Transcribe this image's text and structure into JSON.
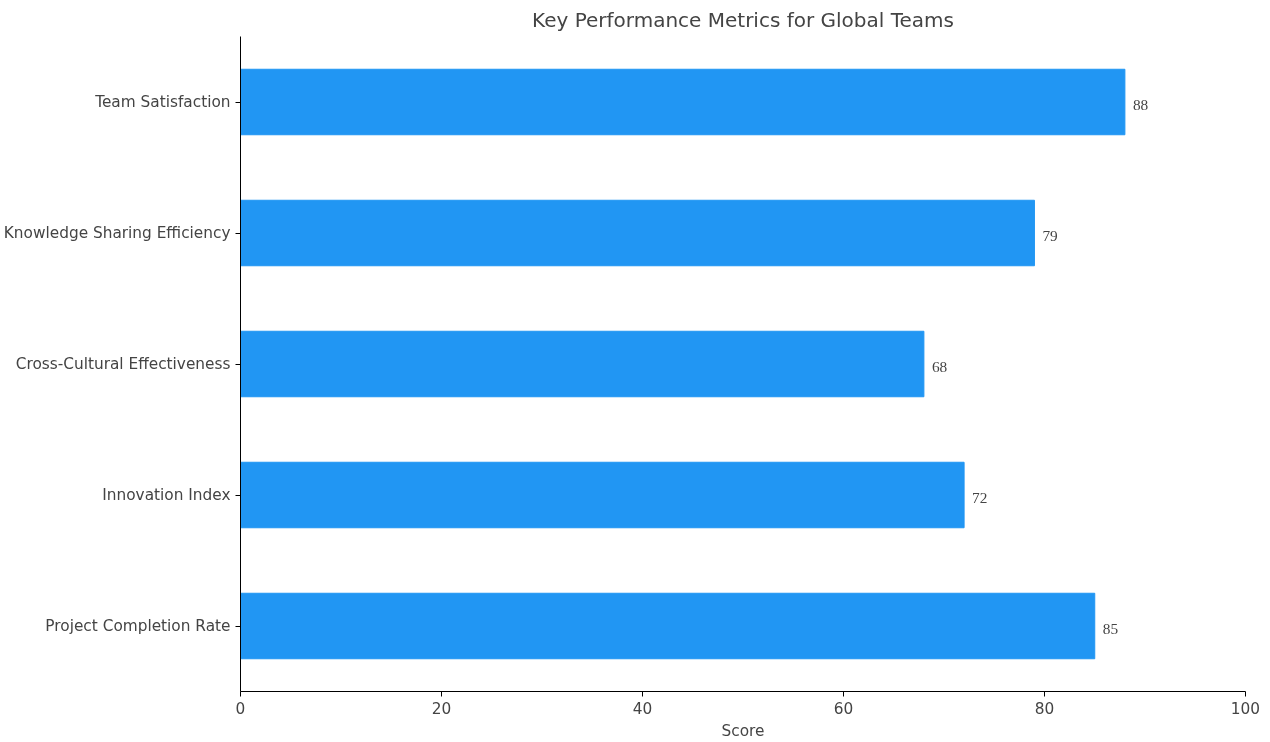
{
  "chart_data": {
    "type": "bar",
    "orientation": "horizontal",
    "title": "Key Performance Metrics for Global Teams",
    "xlabel": "Score",
    "categories": [
      "Team Satisfaction",
      "Knowledge Sharing Efficiency",
      "Cross-Cultural Effectiveness",
      "Innovation Index",
      "Project Completion Rate"
    ],
    "values": [
      88,
      79,
      68,
      72,
      85
    ],
    "color": "#2196f3",
    "xlim": [
      0,
      100
    ],
    "xticks": [
      0,
      20,
      40,
      60,
      80,
      100
    ],
    "data_labels": true,
    "grid": false
  }
}
